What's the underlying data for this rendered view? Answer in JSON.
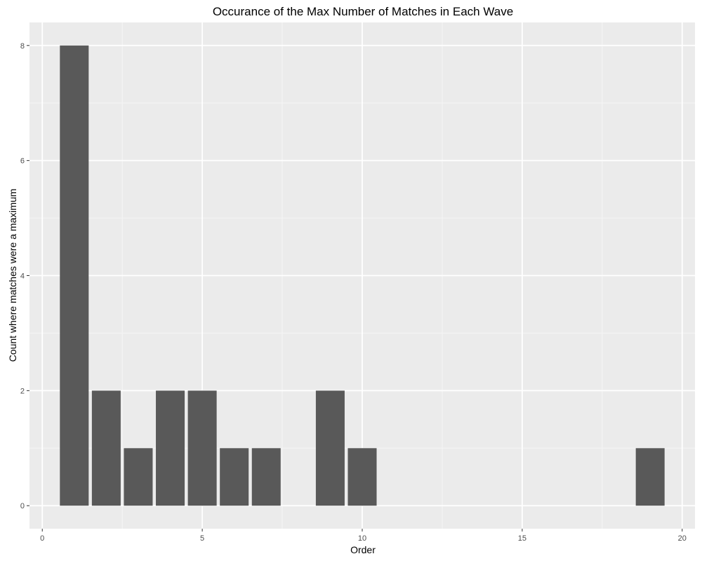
{
  "chart_data": {
    "type": "bar",
    "title": "Occurance of the Max Number of Matches in Each Wave",
    "xlabel": "Order",
    "ylabel": "Count where matches were a maximum",
    "x": [
      1,
      2,
      3,
      4,
      5,
      6,
      7,
      9,
      10,
      19
    ],
    "values": [
      8,
      2,
      1,
      2,
      2,
      1,
      1,
      2,
      1,
      1
    ],
    "xlim": [
      -0.4,
      20.4
    ],
    "ylim": [
      -0.4,
      8.4
    ],
    "xticks": [
      0,
      5,
      10,
      15,
      20
    ],
    "yticks": [
      0,
      2,
      4,
      6,
      8
    ],
    "grid": true,
    "colors": {
      "panel_background": "#ebebeb",
      "grid_major": "#ffffff",
      "grid_minor": "#f5f5f5",
      "bar_fill": "#595959",
      "tick_mark": "#333333"
    }
  }
}
